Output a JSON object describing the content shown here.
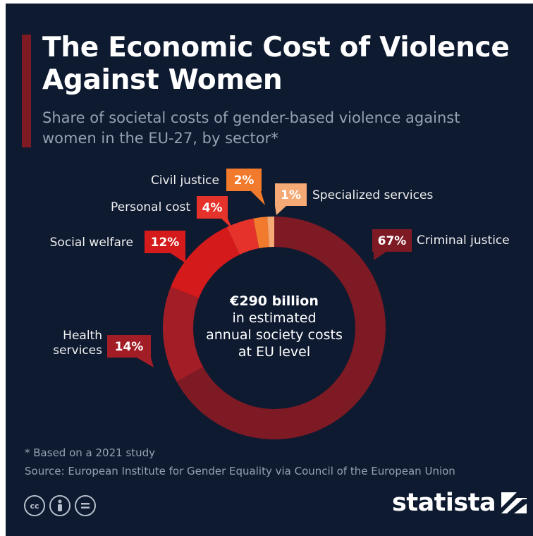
{
  "header": {
    "title": "The Economic Cost of Violence Against Women",
    "subtitle": "Share of societal costs of gender-based violence against women in the EU-27, by sector*"
  },
  "center": {
    "line1": "€290 billion",
    "line2": "in estimated",
    "line3": "annual society costs",
    "line4": "at EU level"
  },
  "footer": {
    "footnote": "* Based on a 2021 study",
    "source": "Source: European Institute for Gender Equality via Council of the European Union",
    "brand": "statista",
    "license_icons": [
      "cc-icon",
      "attribution-icon",
      "no-derivatives-icon"
    ]
  },
  "chart_data": {
    "type": "pie",
    "style": "donut",
    "categories": [
      "Criminal justice",
      "Health services",
      "Social welfare",
      "Personal cost",
      "Civil justice",
      "Specialized services"
    ],
    "label_texts": [
      "Criminal justice",
      "Health\nservices",
      "Social welfare",
      "Personal cost",
      "Civil justice",
      "Specialized services"
    ],
    "values": [
      67,
      14,
      12,
      4,
      2,
      1
    ],
    "value_labels": [
      "67%",
      "14%",
      "12%",
      "4%",
      "2%",
      "1%"
    ],
    "unit": "%",
    "colors": [
      "#7d1a24",
      "#a31d26",
      "#d41a1a",
      "#e5322a",
      "#f27a2c",
      "#f5a974"
    ],
    "label_badge_colors": [
      "#7d1a24",
      "#a31d26",
      "#d41a1a",
      "#e5322a",
      "#f27a2c",
      "#f5a974"
    ],
    "start": "12 o'clock, clockwise"
  }
}
